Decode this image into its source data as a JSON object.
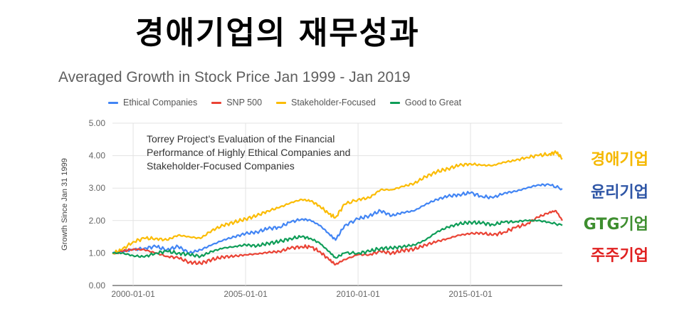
{
  "heading": "경애기업의 재무성과",
  "chart_data": {
    "type": "line",
    "title": "Averaged Growth in Stock Price Jan 1999 - Jan 2019",
    "ylabel": "Growth Since Jan 31 1999",
    "xlabel": "",
    "ylim": [
      0,
      5
    ],
    "yticks": [
      "0.00",
      "1.00",
      "2.00",
      "3.00",
      "4.00",
      "5.00"
    ],
    "xticks": [
      "2000-01-01",
      "2005-01-01",
      "2010-01-01",
      "2015-01-01"
    ],
    "xtick_years": [
      2000,
      2005,
      2010,
      2015
    ],
    "xlim": [
      1999.08,
      2019.08
    ],
    "grid": "horizontal",
    "legend_position": "top",
    "annotation": "Torrey Project’s Evaluation of the Financial\nPerformance of Highly Ethical Companies and\nStakeholder-Focused Companies",
    "series": [
      {
        "name": "Ethical Companies",
        "color": "#4285f4",
        "points": [
          [
            1999.08,
            1.0
          ],
          [
            1999.5,
            1.05
          ],
          [
            2000.0,
            1.1
          ],
          [
            2000.5,
            1.15
          ],
          [
            2001.0,
            1.2
          ],
          [
            2001.5,
            1.1
          ],
          [
            2002.0,
            1.2
          ],
          [
            2002.5,
            1.0
          ],
          [
            2003.0,
            1.1
          ],
          [
            2003.5,
            1.25
          ],
          [
            2004.0,
            1.4
          ],
          [
            2004.5,
            1.5
          ],
          [
            2005.0,
            1.6
          ],
          [
            2005.5,
            1.65
          ],
          [
            2006.0,
            1.75
          ],
          [
            2006.5,
            1.8
          ],
          [
            2007.0,
            1.95
          ],
          [
            2007.5,
            2.05
          ],
          [
            2007.9,
            2.0
          ],
          [
            2008.3,
            1.85
          ],
          [
            2008.7,
            1.6
          ],
          [
            2009.0,
            1.4
          ],
          [
            2009.4,
            1.85
          ],
          [
            2010.0,
            2.05
          ],
          [
            2010.5,
            2.15
          ],
          [
            2011.0,
            2.3
          ],
          [
            2011.5,
            2.15
          ],
          [
            2012.0,
            2.25
          ],
          [
            2012.5,
            2.3
          ],
          [
            2013.0,
            2.5
          ],
          [
            2013.5,
            2.65
          ],
          [
            2014.0,
            2.75
          ],
          [
            2014.5,
            2.8
          ],
          [
            2015.0,
            2.85
          ],
          [
            2015.5,
            2.75
          ],
          [
            2016.0,
            2.7
          ],
          [
            2016.5,
            2.85
          ],
          [
            2017.0,
            2.9
          ],
          [
            2017.5,
            3.0
          ],
          [
            2018.0,
            3.1
          ],
          [
            2018.5,
            3.1
          ],
          [
            2019.08,
            2.98
          ]
        ]
      },
      {
        "name": "SNP 500",
        "color": "#ea4335",
        "points": [
          [
            1999.08,
            1.0
          ],
          [
            1999.5,
            1.05
          ],
          [
            2000.0,
            1.12
          ],
          [
            2000.5,
            1.1
          ],
          [
            2001.0,
            1.0
          ],
          [
            2001.5,
            0.9
          ],
          [
            2002.0,
            0.85
          ],
          [
            2002.5,
            0.72
          ],
          [
            2003.0,
            0.68
          ],
          [
            2003.5,
            0.8
          ],
          [
            2004.0,
            0.88
          ],
          [
            2004.5,
            0.9
          ],
          [
            2005.0,
            0.95
          ],
          [
            2005.5,
            0.97
          ],
          [
            2006.0,
            1.02
          ],
          [
            2006.5,
            1.05
          ],
          [
            2007.0,
            1.15
          ],
          [
            2007.5,
            1.2
          ],
          [
            2007.9,
            1.18
          ],
          [
            2008.3,
            1.05
          ],
          [
            2008.7,
            0.8
          ],
          [
            2009.0,
            0.65
          ],
          [
            2009.4,
            0.8
          ],
          [
            2010.0,
            0.95
          ],
          [
            2010.5,
            0.95
          ],
          [
            2011.0,
            1.05
          ],
          [
            2011.5,
            1.0
          ],
          [
            2012.0,
            1.08
          ],
          [
            2012.5,
            1.12
          ],
          [
            2013.0,
            1.25
          ],
          [
            2013.5,
            1.35
          ],
          [
            2014.0,
            1.45
          ],
          [
            2014.5,
            1.55
          ],
          [
            2015.0,
            1.6
          ],
          [
            2015.5,
            1.62
          ],
          [
            2016.0,
            1.55
          ],
          [
            2016.5,
            1.65
          ],
          [
            2017.0,
            1.78
          ],
          [
            2017.5,
            1.9
          ],
          [
            2018.0,
            2.1
          ],
          [
            2018.5,
            2.25
          ],
          [
            2018.8,
            2.3
          ],
          [
            2019.08,
            2.0
          ]
        ]
      },
      {
        "name": "Stakeholder-Focused",
        "color": "#fbbc04",
        "points": [
          [
            1999.08,
            1.0
          ],
          [
            1999.5,
            1.1
          ],
          [
            2000.0,
            1.35
          ],
          [
            2000.5,
            1.45
          ],
          [
            2001.0,
            1.45
          ],
          [
            2001.5,
            1.4
          ],
          [
            2002.0,
            1.55
          ],
          [
            2002.5,
            1.5
          ],
          [
            2003.0,
            1.45
          ],
          [
            2003.5,
            1.7
          ],
          [
            2004.0,
            1.85
          ],
          [
            2004.5,
            1.95
          ],
          [
            2005.0,
            2.05
          ],
          [
            2005.5,
            2.15
          ],
          [
            2006.0,
            2.3
          ],
          [
            2006.5,
            2.4
          ],
          [
            2007.0,
            2.55
          ],
          [
            2007.5,
            2.65
          ],
          [
            2007.9,
            2.6
          ],
          [
            2008.3,
            2.45
          ],
          [
            2008.7,
            2.2
          ],
          [
            2009.0,
            2.1
          ],
          [
            2009.4,
            2.5
          ],
          [
            2010.0,
            2.65
          ],
          [
            2010.5,
            2.7
          ],
          [
            2011.0,
            2.95
          ],
          [
            2011.5,
            2.95
          ],
          [
            2012.0,
            3.05
          ],
          [
            2012.5,
            3.15
          ],
          [
            2013.0,
            3.35
          ],
          [
            2013.5,
            3.5
          ],
          [
            2014.0,
            3.6
          ],
          [
            2014.5,
            3.7
          ],
          [
            2015.0,
            3.75
          ],
          [
            2015.5,
            3.7
          ],
          [
            2016.0,
            3.7
          ],
          [
            2016.5,
            3.8
          ],
          [
            2017.0,
            3.85
          ],
          [
            2017.5,
            3.95
          ],
          [
            2018.0,
            4.0
          ],
          [
            2018.5,
            4.05
          ],
          [
            2018.8,
            4.1
          ],
          [
            2019.08,
            3.92
          ]
        ]
      },
      {
        "name": "Good to Great",
        "color": "#0f9d58",
        "points": [
          [
            1999.08,
            1.0
          ],
          [
            1999.5,
            1.0
          ],
          [
            2000.0,
            0.92
          ],
          [
            2000.5,
            0.88
          ],
          [
            2001.0,
            1.0
          ],
          [
            2001.5,
            1.05
          ],
          [
            2002.0,
            1.0
          ],
          [
            2002.5,
            0.95
          ],
          [
            2003.0,
            0.9
          ],
          [
            2003.5,
            1.05
          ],
          [
            2004.0,
            1.15
          ],
          [
            2004.5,
            1.2
          ],
          [
            2005.0,
            1.25
          ],
          [
            2005.5,
            1.22
          ],
          [
            2006.0,
            1.3
          ],
          [
            2006.5,
            1.35
          ],
          [
            2007.0,
            1.45
          ],
          [
            2007.5,
            1.5
          ],
          [
            2007.9,
            1.45
          ],
          [
            2008.3,
            1.3
          ],
          [
            2008.7,
            1.05
          ],
          [
            2009.0,
            0.85
          ],
          [
            2009.4,
            1.0
          ],
          [
            2010.0,
            1.0
          ],
          [
            2010.5,
            1.05
          ],
          [
            2011.0,
            1.15
          ],
          [
            2011.5,
            1.15
          ],
          [
            2012.0,
            1.2
          ],
          [
            2012.5,
            1.25
          ],
          [
            2013.0,
            1.4
          ],
          [
            2013.5,
            1.65
          ],
          [
            2014.0,
            1.8
          ],
          [
            2014.5,
            1.9
          ],
          [
            2015.0,
            1.95
          ],
          [
            2015.5,
            1.92
          ],
          [
            2016.0,
            1.88
          ],
          [
            2016.5,
            1.95
          ],
          [
            2017.0,
            1.97
          ],
          [
            2017.5,
            2.0
          ],
          [
            2018.0,
            2.0
          ],
          [
            2018.5,
            1.95
          ],
          [
            2019.08,
            1.85
          ]
        ]
      }
    ]
  },
  "side_labels": [
    {
      "text": "경애기업",
      "color": "#f5b800"
    },
    {
      "text": "윤리기업",
      "color": "#2f56a6"
    },
    {
      "text": "GTG기업",
      "color": "#3e8e2f"
    },
    {
      "text": "주주기업",
      "color": "#e02020"
    }
  ]
}
